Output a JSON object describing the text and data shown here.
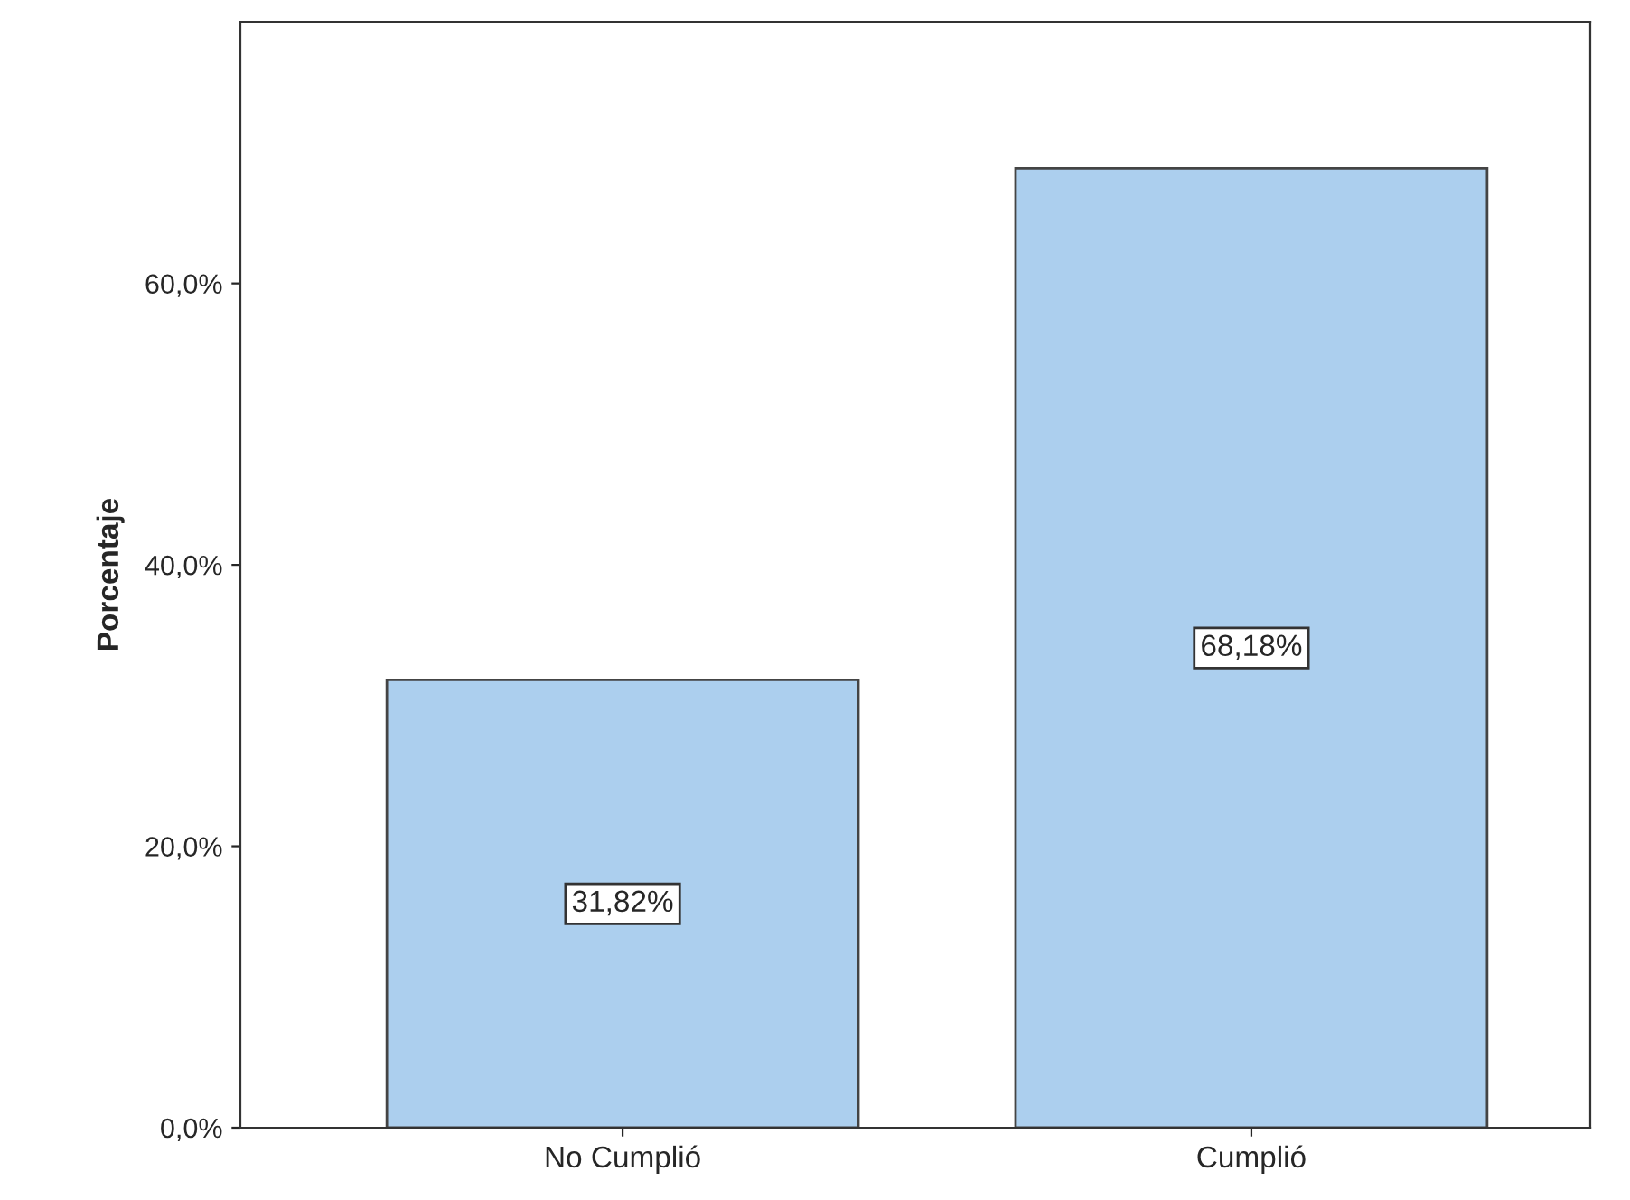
{
  "chart_data": {
    "type": "bar",
    "ylabel": "Porcentaje",
    "categories": [
      "No Cumplió",
      "Cumplió"
    ],
    "values": [
      31.82,
      68.18
    ],
    "value_labels": [
      "31,82%",
      "68,18%"
    ],
    "color": "#accfee",
    "ylim": [
      0,
      78.6
    ],
    "yticks": [
      {
        "value": 0,
        "label": "0,0%"
      },
      {
        "value": 20,
        "label": "20,0%"
      },
      {
        "value": 40,
        "label": "40,0%"
      },
      {
        "value": 60,
        "label": "60,0%"
      }
    ],
    "grid": false,
    "legend": false
  }
}
